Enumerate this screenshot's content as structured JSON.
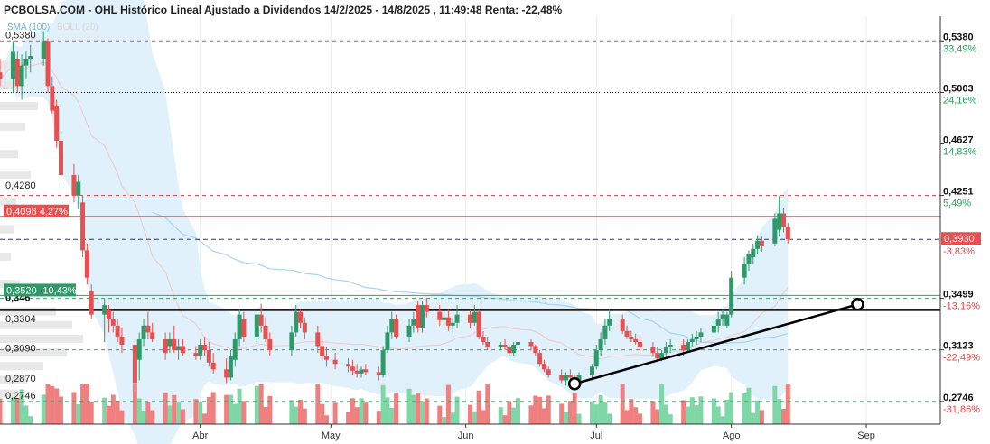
{
  "header": {
    "title": "PCBOLSA.COM - OHL Histórico Lineal Ajustado a Dividendos 14/2/2025 - 14/8/2025 , 11:49:48 Renta: -22,48%",
    "legend_sma": "SMA (100)",
    "legend_boll": "BOLL (20)"
  },
  "chart_data": {
    "type": "candlestick",
    "title": "PCBOLSA.COM - OHL Histórico Lineal Ajustado a Dividendos 14/2/2025 - 14/8/2025 , 11:49:48 Renta: -22,48%",
    "y_range": [
      0.258,
      0.556
    ],
    "x_range": [
      "2025-02-14",
      "2025-09-18"
    ],
    "x_ticks": [
      {
        "label": "Abr",
        "date": "2025-04-01"
      },
      {
        "label": "May",
        "date": "2025-05-01"
      },
      {
        "label": "Jun",
        "date": "2025-06-01"
      },
      {
        "label": "Jul",
        "date": "2025-07-01"
      },
      {
        "label": "Ago",
        "date": "2025-08-01"
      },
      {
        "label": "Sep",
        "date": "2025-09-01"
      }
    ],
    "left_levels": [
      {
        "label": "0,5380",
        "value": 0.538
      },
      {
        "label": "0,4280",
        "value": 0.428
      },
      {
        "label": "0,346",
        "value": 0.346,
        "bold": true
      },
      {
        "label": "0,3304",
        "value": 0.3304
      },
      {
        "label": "0,3090",
        "value": 0.309
      },
      {
        "label": "0,2870",
        "value": 0.287
      },
      {
        "label": "0,2746",
        "value": 0.2746
      }
    ],
    "right_levels": [
      {
        "price": "0,5380",
        "pct": "33,49%",
        "value": 0.538,
        "color": "green",
        "line": "dash-red"
      },
      {
        "price": "0,5003",
        "pct": "24,16%",
        "value": 0.5003,
        "color": "green",
        "line": "dot-black"
      },
      {
        "price": "0,4627",
        "pct": "14,83%",
        "value": 0.4627,
        "color": "green",
        "line": "none"
      },
      {
        "price": "0,4251",
        "pct": "5,49%",
        "value": 0.4251,
        "color": "green",
        "line": "dash-red"
      },
      {
        "price": "0,3499",
        "pct": "-13,16%",
        "value": 0.3499,
        "color": "red",
        "line": "dash-gray"
      },
      {
        "price": "0,3123",
        "pct": "-22,49%",
        "value": 0.3123,
        "color": "red",
        "line": "dash-gray"
      },
      {
        "price": "0,2746",
        "pct": "-31,86%",
        "value": 0.2746,
        "color": "red",
        "line": "dash-gray"
      }
    ],
    "current_price": {
      "label": "0,3930",
      "value": 0.393
    },
    "current_pct": "-3,83%",
    "marker_red": {
      "price": "0,4098",
      "pct": "4,27%",
      "value": 0.4098
    },
    "marker_green": {
      "price": "0,3520",
      "pct": "-10,43%",
      "value": 0.352
    },
    "support_line": {
      "value": 0.3415
    },
    "trendline": {
      "start": {
        "date": "2025-06-26",
        "value": 0.2875
      },
      "end": {
        "date": "2025-08-30",
        "value": 0.3455
      }
    },
    "candles": [
      {
        "date": "2025-02-14",
        "o": 0.515,
        "h": 0.525,
        "l": 0.505,
        "c": 0.51
      },
      {
        "date": "2025-02-17",
        "o": 0.51,
        "h": 0.538,
        "l": 0.5,
        "c": 0.53
      },
      {
        "date": "2025-02-18",
        "o": 0.525,
        "h": 0.53,
        "l": 0.5,
        "c": 0.505
      },
      {
        "date": "2025-02-19",
        "o": 0.505,
        "h": 0.528,
        "l": 0.495,
        "c": 0.52
      },
      {
        "date": "2025-02-20",
        "o": 0.52,
        "h": 0.53,
        "l": 0.51,
        "c": 0.525
      },
      {
        "date": "2025-02-21",
        "o": 0.525,
        "h": 0.535,
        "l": 0.515,
        "c": 0.527
      },
      {
        "date": "2025-02-24",
        "o": 0.525,
        "h": 0.545,
        "l": 0.52,
        "c": 0.538
      },
      {
        "date": "2025-02-25",
        "o": 0.538,
        "h": 0.54,
        "l": 0.5,
        "c": 0.505
      },
      {
        "date": "2025-02-26",
        "o": 0.505,
        "h": 0.512,
        "l": 0.485,
        "c": 0.487
      },
      {
        "date": "2025-02-27",
        "o": 0.49,
        "h": 0.495,
        "l": 0.46,
        "c": 0.465
      },
      {
        "date": "2025-02-28",
        "o": 0.465,
        "h": 0.47,
        "l": 0.435,
        "c": 0.44
      },
      {
        "date": "2025-03-03",
        "o": 0.44,
        "h": 0.448,
        "l": 0.42,
        "c": 0.425
      },
      {
        "date": "2025-03-04",
        "o": 0.425,
        "h": 0.44,
        "l": 0.415,
        "c": 0.435
      },
      {
        "date": "2025-03-05",
        "o": 0.42,
        "h": 0.425,
        "l": 0.38,
        "c": 0.385
      },
      {
        "date": "2025-03-06",
        "o": 0.385,
        "h": 0.39,
        "l": 0.36,
        "c": 0.365
      },
      {
        "date": "2025-03-07",
        "o": 0.355,
        "h": 0.36,
        "l": 0.335,
        "c": 0.338
      },
      {
        "date": "2025-03-10",
        "o": 0.338,
        "h": 0.35,
        "l": 0.318,
        "c": 0.345
      },
      {
        "date": "2025-03-11",
        "o": 0.342,
        "h": 0.345,
        "l": 0.325,
        "c": 0.335
      },
      {
        "date": "2025-03-12",
        "o": 0.335,
        "h": 0.34,
        "l": 0.325,
        "c": 0.33
      },
      {
        "date": "2025-03-13",
        "o": 0.33,
        "h": 0.335,
        "l": 0.318,
        "c": 0.322
      },
      {
        "date": "2025-03-14",
        "o": 0.322,
        "h": 0.328,
        "l": 0.31,
        "c": 0.316
      },
      {
        "date": "2025-03-17",
        "o": 0.316,
        "h": 0.32,
        "l": 0.28,
        "c": 0.288
      },
      {
        "date": "2025-03-18",
        "o": 0.305,
        "h": 0.325,
        "l": 0.29,
        "c": 0.32
      },
      {
        "date": "2025-03-19",
        "o": 0.32,
        "h": 0.335,
        "l": 0.315,
        "c": 0.33
      },
      {
        "date": "2025-03-20",
        "o": 0.33,
        "h": 0.34,
        "l": 0.32,
        "c": 0.325
      },
      {
        "date": "2025-03-21",
        "o": 0.325,
        "h": 0.332,
        "l": 0.318,
        "c": 0.32
      },
      {
        "date": "2025-03-24",
        "o": 0.32,
        "h": 0.325,
        "l": 0.305,
        "c": 0.31
      },
      {
        "date": "2025-03-25",
        "o": 0.315,
        "h": 0.325,
        "l": 0.31,
        "c": 0.32
      },
      {
        "date": "2025-03-26",
        "o": 0.32,
        "h": 0.33,
        "l": 0.31,
        "c": 0.312
      },
      {
        "date": "2025-03-27",
        "o": 0.312,
        "h": 0.32,
        "l": 0.305,
        "c": 0.315
      },
      {
        "date": "2025-03-28",
        "o": 0.315,
        "h": 0.32,
        "l": 0.308,
        "c": 0.31
      },
      {
        "date": "2025-03-31",
        "o": 0.31,
        "h": 0.315,
        "l": 0.305,
        "c": 0.308
      },
      {
        "date": "2025-04-01",
        "o": 0.308,
        "h": 0.32,
        "l": 0.305,
        "c": 0.316
      },
      {
        "date": "2025-04-02",
        "o": 0.316,
        "h": 0.322,
        "l": 0.308,
        "c": 0.312
      },
      {
        "date": "2025-04-03",
        "o": 0.312,
        "h": 0.318,
        "l": 0.3,
        "c": 0.303
      },
      {
        "date": "2025-04-04",
        "o": 0.303,
        "h": 0.31,
        "l": 0.295,
        "c": 0.298
      },
      {
        "date": "2025-04-07",
        "o": 0.298,
        "h": 0.306,
        "l": 0.288,
        "c": 0.292
      },
      {
        "date": "2025-04-08",
        "o": 0.292,
        "h": 0.312,
        "l": 0.29,
        "c": 0.308
      },
      {
        "date": "2025-04-09",
        "o": 0.305,
        "h": 0.325,
        "l": 0.3,
        "c": 0.32
      },
      {
        "date": "2025-04-10",
        "o": 0.32,
        "h": 0.342,
        "l": 0.315,
        "c": 0.338
      },
      {
        "date": "2025-04-11",
        "o": 0.335,
        "h": 0.34,
        "l": 0.318,
        "c": 0.322
      },
      {
        "date": "2025-04-14",
        "o": 0.322,
        "h": 0.34,
        "l": 0.318,
        "c": 0.338
      },
      {
        "date": "2025-04-15",
        "o": 0.338,
        "h": 0.346,
        "l": 0.325,
        "c": 0.33
      },
      {
        "date": "2025-04-16",
        "o": 0.33,
        "h": 0.336,
        "l": 0.318,
        "c": 0.32
      },
      {
        "date": "2025-04-17",
        "o": 0.32,
        "h": 0.325,
        "l": 0.308,
        "c": 0.312
      },
      {
        "date": "2025-04-22",
        "o": 0.312,
        "h": 0.33,
        "l": 0.308,
        "c": 0.325
      },
      {
        "date": "2025-04-23",
        "o": 0.325,
        "h": 0.345,
        "l": 0.322,
        "c": 0.34
      },
      {
        "date": "2025-04-24",
        "o": 0.34,
        "h": 0.342,
        "l": 0.328,
        "c": 0.332
      },
      {
        "date": "2025-04-25",
        "o": 0.332,
        "h": 0.336,
        "l": 0.32,
        "c": 0.325
      },
      {
        "date": "2025-04-28",
        "o": 0.325,
        "h": 0.33,
        "l": 0.31,
        "c": 0.315
      },
      {
        "date": "2025-04-29",
        "o": 0.315,
        "h": 0.32,
        "l": 0.305,
        "c": 0.308
      },
      {
        "date": "2025-04-30",
        "o": 0.308,
        "h": 0.314,
        "l": 0.3,
        "c": 0.305
      },
      {
        "date": "2025-05-02",
        "o": 0.305,
        "h": 0.31,
        "l": 0.298,
        "c": 0.302
      },
      {
        "date": "2025-05-05",
        "o": 0.302,
        "h": 0.306,
        "l": 0.296,
        "c": 0.3
      },
      {
        "date": "2025-05-06",
        "o": 0.3,
        "h": 0.305,
        "l": 0.294,
        "c": 0.297
      },
      {
        "date": "2025-05-07",
        "o": 0.297,
        "h": 0.302,
        "l": 0.292,
        "c": 0.295
      },
      {
        "date": "2025-05-08",
        "o": 0.295,
        "h": 0.3,
        "l": 0.292,
        "c": 0.298
      },
      {
        "date": "2025-05-09",
        "o": 0.298,
        "h": 0.302,
        "l": 0.294,
        "c": 0.296
      },
      {
        "date": "2025-05-12",
        "o": 0.296,
        "h": 0.3,
        "l": 0.29,
        "c": 0.294
      },
      {
        "date": "2025-05-13",
        "o": 0.294,
        "h": 0.315,
        "l": 0.292,
        "c": 0.312
      },
      {
        "date": "2025-05-14",
        "o": 0.312,
        "h": 0.33,
        "l": 0.31,
        "c": 0.325
      },
      {
        "date": "2025-05-15",
        "o": 0.325,
        "h": 0.34,
        "l": 0.32,
        "c": 0.335
      },
      {
        "date": "2025-05-16",
        "o": 0.335,
        "h": 0.338,
        "l": 0.32,
        "c": 0.322
      },
      {
        "date": "2025-05-19",
        "o": 0.322,
        "h": 0.335,
        "l": 0.318,
        "c": 0.33
      },
      {
        "date": "2025-05-20",
        "o": 0.33,
        "h": 0.34,
        "l": 0.325,
        "c": 0.335
      },
      {
        "date": "2025-05-21",
        "o": 0.345,
        "h": 0.348,
        "l": 0.325,
        "c": 0.328
      },
      {
        "date": "2025-05-22",
        "o": 0.328,
        "h": 0.348,
        "l": 0.325,
        "c": 0.345
      },
      {
        "date": "2025-05-23",
        "o": 0.345,
        "h": 0.35,
        "l": 0.336,
        "c": 0.34
      },
      {
        "date": "2025-05-26",
        "o": 0.34,
        "h": 0.345,
        "l": 0.33,
        "c": 0.334
      },
      {
        "date": "2025-05-27",
        "o": 0.334,
        "h": 0.34,
        "l": 0.328,
        "c": 0.336
      },
      {
        "date": "2025-05-28",
        "o": 0.336,
        "h": 0.342,
        "l": 0.326,
        "c": 0.33
      },
      {
        "date": "2025-05-29",
        "o": 0.33,
        "h": 0.336,
        "l": 0.324,
        "c": 0.332
      },
      {
        "date": "2025-05-30",
        "o": 0.332,
        "h": 0.345,
        "l": 0.328,
        "c": 0.338
      },
      {
        "date": "2025-06-02",
        "o": 0.338,
        "h": 0.342,
        "l": 0.328,
        "c": 0.332
      },
      {
        "date": "2025-06-03",
        "o": 0.332,
        "h": 0.345,
        "l": 0.33,
        "c": 0.34
      },
      {
        "date": "2025-06-04",
        "o": 0.34,
        "h": 0.342,
        "l": 0.32,
        "c": 0.322
      },
      {
        "date": "2025-06-05",
        "o": 0.322,
        "h": 0.326,
        "l": 0.316,
        "c": 0.318
      },
      {
        "date": "2025-06-06",
        "o": 0.318,
        "h": 0.322,
        "l": 0.312,
        "c": 0.314
      },
      {
        "date": "2025-06-09",
        "o": 0.314,
        "h": 0.318,
        "l": 0.312,
        "c": 0.316
      },
      {
        "date": "2025-06-10",
        "o": 0.316,
        "h": 0.32,
        "l": 0.312,
        "c": 0.314
      },
      {
        "date": "2025-06-11",
        "o": 0.314,
        "h": 0.316,
        "l": 0.308,
        "c": 0.31
      },
      {
        "date": "2025-06-12",
        "o": 0.31,
        "h": 0.318,
        "l": 0.308,
        "c": 0.316
      },
      {
        "date": "2025-06-13",
        "o": 0.316,
        "h": 0.32,
        "l": 0.312,
        "c": 0.318
      },
      {
        "date": "2025-06-16",
        "o": 0.318,
        "h": 0.32,
        "l": 0.312,
        "c": 0.315
      },
      {
        "date": "2025-06-17",
        "o": 0.315,
        "h": 0.316,
        "l": 0.308,
        "c": 0.31
      },
      {
        "date": "2025-06-18",
        "o": 0.31,
        "h": 0.312,
        "l": 0.3,
        "c": 0.302
      },
      {
        "date": "2025-06-19",
        "o": 0.302,
        "h": 0.305,
        "l": 0.296,
        "c": 0.298
      },
      {
        "date": "2025-06-20",
        "o": 0.298,
        "h": 0.3,
        "l": 0.292,
        "c": 0.294
      },
      {
        "date": "2025-06-23",
        "o": 0.294,
        "h": 0.298,
        "l": 0.288,
        "c": 0.29
      },
      {
        "date": "2025-06-24",
        "o": 0.29,
        "h": 0.296,
        "l": 0.286,
        "c": 0.294
      },
      {
        "date": "2025-06-25",
        "o": 0.294,
        "h": 0.298,
        "l": 0.288,
        "c": 0.292
      },
      {
        "date": "2025-06-26",
        "o": 0.29,
        "h": 0.294,
        "l": 0.285,
        "c": 0.288
      },
      {
        "date": "2025-06-27",
        "o": 0.288,
        "h": 0.296,
        "l": 0.286,
        "c": 0.294
      },
      {
        "date": "2025-06-30",
        "o": 0.294,
        "h": 0.302,
        "l": 0.29,
        "c": 0.3
      },
      {
        "date": "2025-07-01",
        "o": 0.3,
        "h": 0.316,
        "l": 0.298,
        "c": 0.312
      },
      {
        "date": "2025-07-02",
        "o": 0.312,
        "h": 0.325,
        "l": 0.308,
        "c": 0.32
      },
      {
        "date": "2025-07-03",
        "o": 0.32,
        "h": 0.335,
        "l": 0.316,
        "c": 0.33
      },
      {
        "date": "2025-07-04",
        "o": 0.33,
        "h": 0.342,
        "l": 0.326,
        "c": 0.335
      },
      {
        "date": "2025-07-07",
        "o": 0.335,
        "h": 0.338,
        "l": 0.324,
        "c": 0.326
      },
      {
        "date": "2025-07-08",
        "o": 0.326,
        "h": 0.33,
        "l": 0.32,
        "c": 0.322
      },
      {
        "date": "2025-07-09",
        "o": 0.322,
        "h": 0.326,
        "l": 0.318,
        "c": 0.32
      },
      {
        "date": "2025-07-10",
        "o": 0.32,
        "h": 0.324,
        "l": 0.316,
        "c": 0.318
      },
      {
        "date": "2025-07-11",
        "o": 0.318,
        "h": 0.322,
        "l": 0.312,
        "c": 0.314
      },
      {
        "date": "2025-07-14",
        "o": 0.314,
        "h": 0.318,
        "l": 0.308,
        "c": 0.31
      },
      {
        "date": "2025-07-15",
        "o": 0.31,
        "h": 0.314,
        "l": 0.304,
        "c": 0.306
      },
      {
        "date": "2025-07-16",
        "o": 0.306,
        "h": 0.312,
        "l": 0.304,
        "c": 0.31
      },
      {
        "date": "2025-07-17",
        "o": 0.31,
        "h": 0.318,
        "l": 0.306,
        "c": 0.314
      },
      {
        "date": "2025-07-18",
        "o": 0.314,
        "h": 0.32,
        "l": 0.31,
        "c": 0.316
      },
      {
        "date": "2025-07-21",
        "o": 0.316,
        "h": 0.32,
        "l": 0.308,
        "c": 0.312
      },
      {
        "date": "2025-07-22",
        "o": 0.312,
        "h": 0.32,
        "l": 0.31,
        "c": 0.318
      },
      {
        "date": "2025-07-23",
        "o": 0.318,
        "h": 0.324,
        "l": 0.314,
        "c": 0.32
      },
      {
        "date": "2025-07-24",
        "o": 0.32,
        "h": 0.326,
        "l": 0.316,
        "c": 0.322
      },
      {
        "date": "2025-07-25",
        "o": 0.322,
        "h": 0.328,
        "l": 0.318,
        "c": 0.325
      },
      {
        "date": "2025-07-28",
        "o": 0.325,
        "h": 0.335,
        "l": 0.322,
        "c": 0.33
      },
      {
        "date": "2025-07-29",
        "o": 0.33,
        "h": 0.34,
        "l": 0.325,
        "c": 0.335
      },
      {
        "date": "2025-07-30",
        "o": 0.335,
        "h": 0.342,
        "l": 0.33,
        "c": 0.338
      },
      {
        "date": "2025-07-31",
        "o": 0.33,
        "h": 0.34,
        "l": 0.328,
        "c": 0.338
      },
      {
        "date": "2025-08-01",
        "o": 0.338,
        "h": 0.37,
        "l": 0.336,
        "c": 0.365
      },
      {
        "date": "2025-08-04",
        "o": 0.365,
        "h": 0.38,
        "l": 0.36,
        "c": 0.375
      },
      {
        "date": "2025-08-05",
        "o": 0.375,
        "h": 0.385,
        "l": 0.37,
        "c": 0.382
      },
      {
        "date": "2025-08-06",
        "o": 0.38,
        "h": 0.39,
        "l": 0.375,
        "c": 0.386
      },
      {
        "date": "2025-08-07",
        "o": 0.386,
        "h": 0.396,
        "l": 0.382,
        "c": 0.392
      },
      {
        "date": "2025-08-08",
        "o": 0.392,
        "h": 0.395,
        "l": 0.384,
        "c": 0.388
      },
      {
        "date": "2025-08-11",
        "o": 0.39,
        "h": 0.412,
        "l": 0.388,
        "c": 0.408
      },
      {
        "date": "2025-08-12",
        "o": 0.4,
        "h": 0.425,
        "l": 0.395,
        "c": 0.412
      },
      {
        "date": "2025-08-13",
        "o": 0.412,
        "h": 0.416,
        "l": 0.398,
        "c": 0.402
      },
      {
        "date": "2025-08-14",
        "o": 0.402,
        "h": 0.405,
        "l": 0.39,
        "c": 0.393
      }
    ]
  }
}
